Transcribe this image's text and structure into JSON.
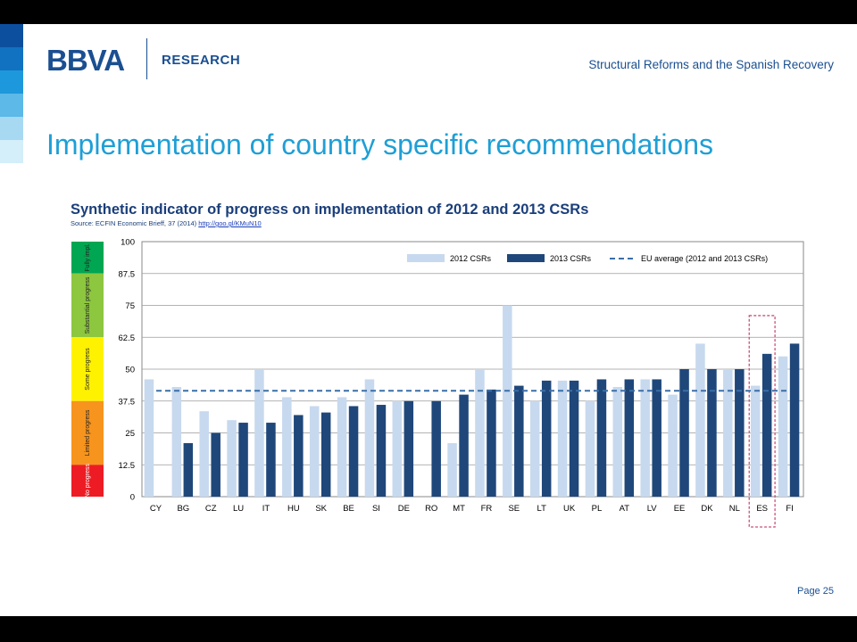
{
  "header": {
    "logo": "BBVA",
    "research": "RESEARCH",
    "subject": "Structural Reforms and the Spanish Recovery"
  },
  "slide_title": "Implementation of country specific recommendations",
  "chart_heading": {
    "title": "Synthetic indicator of progress on implementation of 2012 and 2013 CSRs",
    "source": "Source: ECFIN Economic Brieff, 37 (2014)",
    "source_link": "http://goo.gl/KMuN10"
  },
  "page": "Page 25",
  "colors": {
    "stripes": [
      "#0c4f9e",
      "#1172c1",
      "#1e98dc",
      "#5cb9e8",
      "#a7d9f3",
      "#d4eefa"
    ],
    "series_2012": "#c7d9ee",
    "series_2013": "#1f477a",
    "eu_avg": "#3a6fa8",
    "highlight": "#c8507c",
    "band_fully": "#00a651",
    "band_substantial": "#8dc63f",
    "band_some": "#fff200",
    "band_limited": "#f7941d",
    "band_no": "#ed1c24"
  },
  "chart_data": {
    "type": "bar",
    "categories": [
      "CY",
      "BG",
      "CZ",
      "LU",
      "IT",
      "HU",
      "SK",
      "BE",
      "SI",
      "DE",
      "RO",
      "MT",
      "FR",
      "SE",
      "LT",
      "UK",
      "PL",
      "AT",
      "LV",
      "EE",
      "DK",
      "NL",
      "ES",
      "FI"
    ],
    "series": [
      {
        "name": "2012 CSRs",
        "values": [
          46,
          43,
          33.5,
          30,
          50,
          39,
          35.5,
          39,
          46,
          37.5,
          null,
          21,
          50,
          75,
          37.5,
          45.5,
          37.5,
          43,
          46,
          40,
          60,
          50,
          43.5,
          55
        ]
      },
      {
        "name": "2013 CSRs",
        "values": [
          null,
          21,
          25,
          29,
          29,
          32,
          33,
          35.5,
          36,
          37.5,
          37.5,
          40,
          42,
          43.5,
          45.5,
          45.5,
          46,
          46,
          46,
          50,
          50,
          50,
          56,
          60
        ]
      }
    ],
    "eu_average": {
      "name": "EU average (2012 and 2013 CSRs)",
      "value": 41.5
    },
    "ylim": [
      0,
      100
    ],
    "yticks": [
      "100",
      "87.5",
      "75",
      "62.5",
      "50",
      "37.5",
      "25",
      "12.5",
      "0"
    ],
    "ytick_values": [
      100,
      87.5,
      75,
      62.5,
      50,
      37.5,
      25,
      12.5,
      0
    ],
    "bands": [
      {
        "label": "Fully impl.",
        "from": 87.5,
        "to": 100,
        "color_key": "band_fully"
      },
      {
        "label": "Substantial progress",
        "from": 62.5,
        "to": 87.5,
        "color_key": "band_substantial"
      },
      {
        "label": "Some progress",
        "from": 37.5,
        "to": 62.5,
        "color_key": "band_some"
      },
      {
        "label": "Limited progress",
        "from": 12.5,
        "to": 37.5,
        "color_key": "band_limited"
      },
      {
        "label": "No progress",
        "from": 0,
        "to": 12.5,
        "color_key": "band_no"
      }
    ],
    "highlighted_category": "ES",
    "grid": true,
    "legend_position": "top-right"
  }
}
